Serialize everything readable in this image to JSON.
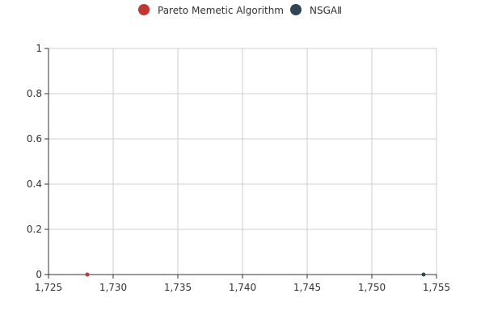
{
  "chart_data": {
    "type": "scatter",
    "title": "",
    "xlabel": "",
    "ylabel": "",
    "xlim": [
      1725,
      1755
    ],
    "ylim": [
      0,
      1
    ],
    "x_ticks": [
      1725,
      1730,
      1735,
      1740,
      1745,
      1750,
      1755
    ],
    "y_ticks": [
      0,
      0.2,
      0.4,
      0.6,
      0.8,
      1
    ],
    "x_tick_labels": [
      "1,725",
      "1,730",
      "1,735",
      "1,740",
      "1,745",
      "1,750",
      "1,755"
    ],
    "y_tick_labels": [
      "0",
      "0.2",
      "0.4",
      "0.6",
      "0.8",
      "1"
    ],
    "grid": true,
    "legend_position": "top-center",
    "series": [
      {
        "name": "Pareto Memetic Algorithm",
        "color": "#c23531",
        "points": [
          {
            "x": 1728,
            "y": 0
          }
        ]
      },
      {
        "name": "NSGAⅡ",
        "color": "#2f4554",
        "points": [
          {
            "x": 1754,
            "y": 0
          }
        ]
      }
    ]
  }
}
